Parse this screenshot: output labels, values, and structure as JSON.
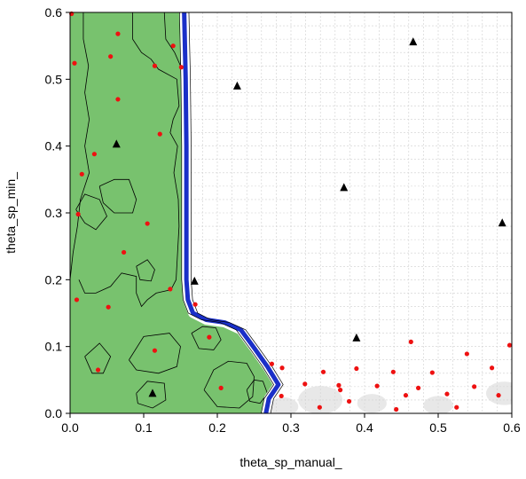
{
  "chart_data": {
    "type": "scatter",
    "title": "",
    "xlabel": "theta_sp_manual_",
    "ylabel": "theta_sp_min_",
    "xlim": [
      0.0,
      0.6
    ],
    "ylim": [
      0.0,
      0.6
    ],
    "x_ticks": [
      "0.0",
      "0.1",
      "0.2",
      "0.3",
      "0.4",
      "0.5",
      "0.6"
    ],
    "y_ticks": [
      "0.0",
      "0.1",
      "0.2",
      "0.3",
      "0.4",
      "0.5",
      "0.6"
    ],
    "grid": true,
    "legend": "none",
    "colors": {
      "region_fill": "#78c26e",
      "boundary": "#1a2fc8",
      "contour": "#000000",
      "point_red": "#ee1111",
      "point_black": "#000000",
      "grid": "#cfcfcf"
    },
    "series": [
      {
        "marker": "circle",
        "color": "#ee1111",
        "points": [
          [
            0.002,
            0.598
          ],
          [
            0.065,
            0.568
          ],
          [
            0.055,
            0.534
          ],
          [
            0.115,
            0.52
          ],
          [
            0.006,
            0.524
          ],
          [
            0.14,
            0.55
          ],
          [
            0.151,
            0.518
          ],
          [
            0.065,
            0.47
          ],
          [
            0.122,
            0.418
          ],
          [
            0.033,
            0.388
          ],
          [
            0.016,
            0.358
          ],
          [
            0.105,
            0.284
          ],
          [
            0.011,
            0.298
          ],
          [
            0.073,
            0.241
          ],
          [
            0.136,
            0.186
          ],
          [
            0.009,
            0.17
          ],
          [
            0.052,
            0.159
          ],
          [
            0.17,
            0.163
          ],
          [
            0.189,
            0.114
          ],
          [
            0.038,
            0.065
          ],
          [
            0.115,
            0.094
          ],
          [
            0.205,
            0.038
          ],
          [
            0.274,
            0.074
          ],
          [
            0.288,
            0.068
          ],
          [
            0.287,
            0.026
          ],
          [
            0.319,
            0.044
          ],
          [
            0.339,
            0.009
          ],
          [
            0.344,
            0.062
          ],
          [
            0.365,
            0.042
          ],
          [
            0.367,
            0.035
          ],
          [
            0.379,
            0.018
          ],
          [
            0.389,
            0.067
          ],
          [
            0.417,
            0.041
          ],
          [
            0.439,
            0.062
          ],
          [
            0.443,
            0.006
          ],
          [
            0.456,
            0.027
          ],
          [
            0.463,
            0.107
          ],
          [
            0.473,
            0.038
          ],
          [
            0.492,
            0.061
          ],
          [
            0.512,
            0.029
          ],
          [
            0.525,
            0.009
          ],
          [
            0.539,
            0.089
          ],
          [
            0.549,
            0.04
          ],
          [
            0.573,
            0.068
          ],
          [
            0.582,
            0.027
          ],
          [
            0.597,
            0.102
          ]
        ]
      },
      {
        "marker": "triangle",
        "color": "#000000",
        "points": [
          [
            0.466,
            0.556
          ],
          [
            0.227,
            0.49
          ],
          [
            0.063,
            0.403
          ],
          [
            0.372,
            0.338
          ],
          [
            0.587,
            0.285
          ],
          [
            0.169,
            0.198
          ],
          [
            0.389,
            0.113
          ],
          [
            0.112,
            0.03
          ]
        ]
      }
    ],
    "region": {
      "description": "green shaded region bounded by blue contour",
      "boundary": [
        [
          0.155,
          0.6
        ],
        [
          0.157,
          0.5
        ],
        [
          0.158,
          0.4
        ],
        [
          0.158,
          0.3
        ],
        [
          0.158,
          0.2
        ],
        [
          0.16,
          0.17
        ],
        [
          0.167,
          0.15
        ],
        [
          0.185,
          0.14
        ],
        [
          0.21,
          0.136
        ],
        [
          0.232,
          0.125
        ],
        [
          0.25,
          0.098
        ],
        [
          0.268,
          0.07
        ],
        [
          0.283,
          0.043
        ],
        [
          0.27,
          0.022
        ],
        [
          0.266,
          0.0
        ]
      ]
    }
  }
}
